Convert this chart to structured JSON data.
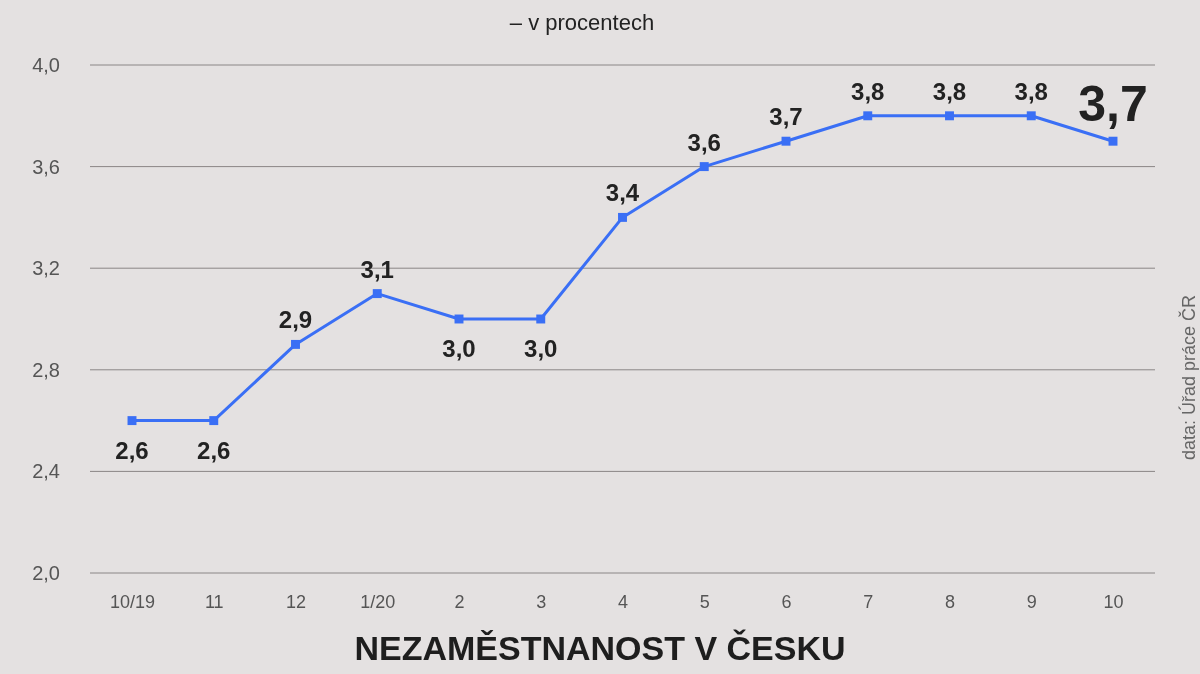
{
  "chart_data": {
    "type": "line",
    "title": "NEZAMĚSTNANOST V ČESKU",
    "subtitle": "– v procentech",
    "categories": [
      "10/19",
      "11",
      "12",
      "1/20",
      "2",
      "3",
      "4",
      "5",
      "6",
      "7",
      "8",
      "9",
      "10"
    ],
    "series": [
      {
        "color": "#3a6ff5",
        "values": [
          2.6,
          2.6,
          2.9,
          3.1,
          3.0,
          3.0,
          3.4,
          3.6,
          3.7,
          3.8,
          3.8,
          3.8,
          3.7
        ],
        "value_labels": [
          "2,6",
          "2,6",
          "2,9",
          "3,1",
          "3,0",
          "3,0",
          "3,4",
          "3,6",
          "3,7",
          "3,8",
          "3,8",
          "3,8",
          "3,7"
        ]
      }
    ],
    "ylim": [
      2.0,
      4.0
    ],
    "yticks": [
      {
        "value": 2.0,
        "label": "2,0"
      },
      {
        "value": 2.4,
        "label": "2,4"
      },
      {
        "value": 2.8,
        "label": "2,8"
      },
      {
        "value": 3.2,
        "label": "3,2"
      },
      {
        "value": 3.6,
        "label": "3,6"
      },
      {
        "value": 4.0,
        "label": "4,0"
      }
    ],
    "grid": "y",
    "marker": "square",
    "line_style": "solid",
    "annotations": [
      "data: Úřad práce ČR"
    ]
  }
}
